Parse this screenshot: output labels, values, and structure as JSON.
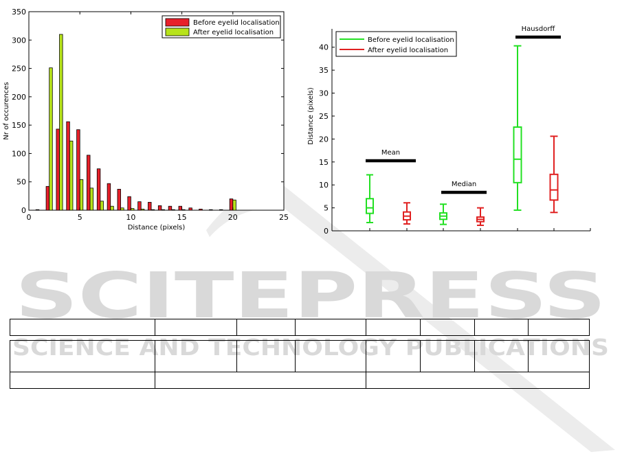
{
  "colors": {
    "before_hist": "#e8202a",
    "after_hist": "#b7e31b",
    "before_box": "#22e022",
    "after_box": "#e02020",
    "watermark": "#d9d9d9"
  },
  "watermark": {
    "line1": "SCITEPRESS",
    "line2": "SCIENCE AND TECHNOLOGY PUBLICATIONS"
  },
  "chart_data": [
    {
      "type": "bar",
      "xlabel": "Distance (pixels)",
      "ylabel": "Nr of occurences",
      "xlim": [
        0,
        25
      ],
      "ylim": [
        0,
        350
      ],
      "xticks": [
        0,
        5,
        10,
        15,
        20,
        25
      ],
      "yticks": [
        0,
        50,
        100,
        150,
        200,
        250,
        300,
        350
      ],
      "grid": false,
      "legend_position": "top-right",
      "x": [
        1,
        2,
        3,
        4,
        5,
        6,
        7,
        8,
        9,
        10,
        11,
        12,
        13,
        14,
        15,
        16,
        17,
        18,
        19,
        20
      ],
      "series": [
        {
          "name": "Before eyelid localisation",
          "values": [
            1,
            42,
            143,
            156,
            142,
            97,
            73,
            47,
            37,
            24,
            15,
            14,
            8,
            7,
            7,
            4,
            2,
            1,
            1,
            20
          ]
        },
        {
          "name": "After eyelid localisation",
          "values": [
            0,
            251,
            310,
            122,
            54,
            39,
            16,
            7,
            4,
            3,
            2,
            1,
            1,
            1,
            1,
            0,
            0,
            0,
            0,
            18
          ]
        }
      ]
    },
    {
      "type": "box",
      "ylabel": "Distance (pixels)",
      "ylim": [
        0,
        44
      ],
      "yticks": [
        0,
        5,
        10,
        15,
        20,
        25,
        30,
        35,
        40
      ],
      "legend_position": "top-left",
      "legend": [
        "Before eyelid localisation",
        "After eyelid localisation"
      ],
      "groups": [
        {
          "label": "Mean",
          "boxes": [
            {
              "series": 0,
              "min": 1.8,
              "q1": 3.8,
              "median": 5.0,
              "q3": 7.0,
              "max": 12.2
            },
            {
              "series": 1,
              "min": 1.5,
              "q1": 2.4,
              "median": 3.2,
              "q3": 4.1,
              "max": 6.1
            }
          ]
        },
        {
          "label": "Median",
          "boxes": [
            {
              "series": 0,
              "min": 1.4,
              "q1": 2.5,
              "median": 3.2,
              "q3": 3.9,
              "max": 5.8
            },
            {
              "series": 1,
              "min": 1.2,
              "q1": 2.0,
              "median": 2.5,
              "q3": 3.0,
              "max": 5.0
            }
          ]
        },
        {
          "label": "Hausdorff",
          "boxes": [
            {
              "series": 0,
              "min": 4.5,
              "q1": 10.5,
              "median": 15.6,
              "q3": 22.6,
              "max": 40.3
            },
            {
              "series": 1,
              "min": 4.0,
              "q1": 6.7,
              "median": 8.9,
              "q3": 12.3,
              "max": 20.6
            }
          ]
        }
      ]
    }
  ]
}
